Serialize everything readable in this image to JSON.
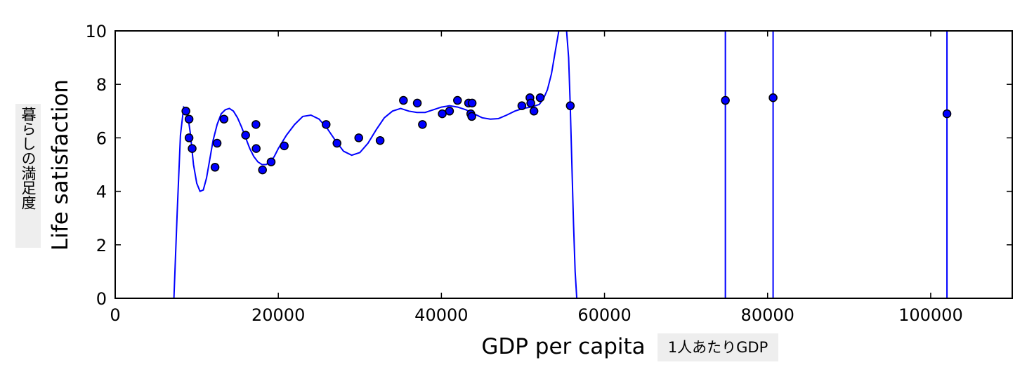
{
  "chart_data": {
    "type": "scatter",
    "xlabel": "GDP per capita",
    "ylabel": "Life satisfaction",
    "xlabel_annotation": "1人あたりGDP",
    "ylabel_annotation": "暮らしの満足度",
    "xlim": [
      0,
      110000
    ],
    "ylim": [
      0,
      10
    ],
    "xticks": [
      0,
      20000,
      40000,
      60000,
      80000,
      100000
    ],
    "yticks": [
      0,
      2,
      4,
      6,
      8,
      10
    ],
    "grid": false,
    "point_color": "#0000ff",
    "line_color": "#0000ff",
    "points": {
      "x": [
        8669,
        9055,
        9054,
        9437,
        12240,
        12495,
        13340,
        15991,
        17256,
        17288,
        18064,
        19121,
        20732,
        25864,
        27195,
        29866,
        32485,
        35343,
        37044,
        37675,
        40106,
        40996,
        41973,
        43331,
        43603,
        43724,
        43770,
        49866,
        50855,
        50962,
        51350,
        52114,
        55805,
        74822,
        80675,
        101994
      ],
      "y": [
        7.0,
        6.7,
        6.0,
        5.6,
        4.9,
        5.8,
        6.7,
        6.1,
        6.5,
        5.6,
        4.8,
        5.1,
        5.7,
        6.5,
        5.8,
        6.0,
        5.9,
        7.4,
        7.3,
        6.5,
        6.9,
        7.0,
        7.4,
        7.3,
        6.9,
        6.8,
        7.3,
        7.2,
        7.5,
        7.3,
        7.0,
        7.5,
        7.2,
        7.4,
        7.5,
        6.9
      ]
    },
    "fit_curve": {
      "x": [
        7200,
        7600,
        8000,
        8400,
        8800,
        9200,
        9600,
        10000,
        10400,
        10800,
        11200,
        11600,
        12000,
        12500,
        13000,
        13500,
        14000,
        14500,
        15000,
        15500,
        16000,
        16500,
        17000,
        17500,
        18000,
        18500,
        19000,
        19500,
        20000,
        21000,
        22000,
        23000,
        24000,
        25000,
        26000,
        27000,
        28000,
        29000,
        30000,
        31000,
        32000,
        33000,
        34000,
        35000,
        36000,
        37000,
        38000,
        39000,
        40000,
        41000,
        42000,
        43000,
        44000,
        45000,
        46000,
        47000,
        48000,
        49000,
        50000,
        51000,
        52000,
        52500,
        53000,
        53500,
        54000,
        54400,
        54700,
        55000,
        55300,
        55600,
        55800,
        56000,
        56200,
        56400,
        56600
      ],
      "y": [
        0.0,
        3.2,
        6.1,
        7.15,
        7.05,
        6.2,
        5.0,
        4.3,
        4.0,
        4.05,
        4.5,
        5.2,
        5.9,
        6.5,
        6.9,
        7.05,
        7.1,
        7.0,
        6.75,
        6.4,
        6.0,
        5.6,
        5.3,
        5.1,
        5.0,
        5.0,
        5.1,
        5.3,
        5.6,
        6.1,
        6.5,
        6.8,
        6.85,
        6.7,
        6.35,
        5.9,
        5.5,
        5.35,
        5.45,
        5.8,
        6.3,
        6.75,
        7.0,
        7.1,
        7.0,
        6.95,
        6.95,
        7.05,
        7.15,
        7.2,
        7.15,
        7.05,
        6.9,
        6.75,
        6.7,
        6.72,
        6.85,
        7.0,
        7.1,
        7.15,
        7.25,
        7.45,
        7.8,
        8.4,
        9.3,
        10.0,
        10.5,
        10.6,
        10.2,
        9.0,
        7.2,
        5.0,
        2.8,
        1.0,
        0.0
      ]
    },
    "vertical_lines_x": [
      74822,
      80675,
      101994
    ]
  }
}
